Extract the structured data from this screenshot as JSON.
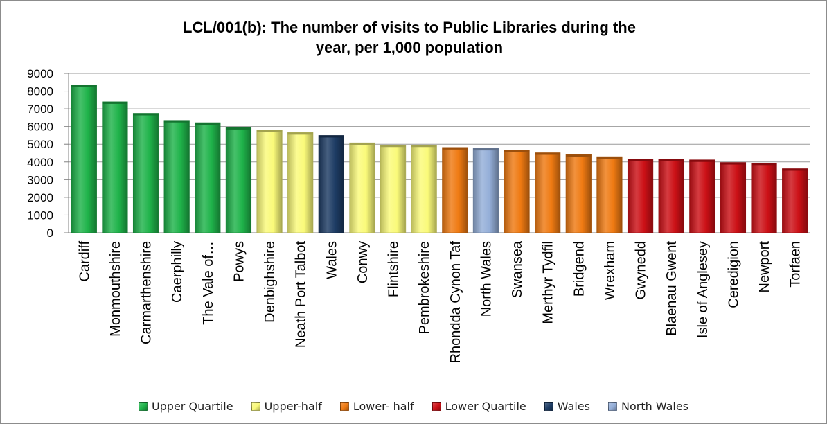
{
  "chart_data": {
    "type": "bar",
    "title_lines": [
      "LCL/001(b): The number of visits to Public Libraries during the",
      "year, per 1,000 population"
    ],
    "categories": [
      "Cardiff",
      "Monmouthshire",
      "Carmarthenshire",
      "Caerphilly",
      "The Vale of…",
      "Powys",
      "Denbighshire",
      "Neath Port Talbot",
      "Wales",
      "Conwy",
      "Flintshire",
      "Pembrokeshire",
      "Rhondda Cynon Taf",
      "North Wales",
      "Swansea",
      "Merthyr Tydfil",
      "Bridgend",
      "Wrexham",
      "Gwynedd",
      "Blaenau Gwent",
      "Isle of Anglesey",
      "Ceredigion",
      "Newport",
      "Torfaen"
    ],
    "values": [
      8350,
      7400,
      6750,
      6350,
      6220,
      5950,
      5800,
      5660,
      5500,
      5080,
      4960,
      4960,
      4820,
      4770,
      4680,
      4520,
      4410,
      4300,
      4170,
      4170,
      4120,
      3970,
      3940,
      3620
    ],
    "groups": [
      "Upper Quartile",
      "Upper Quartile",
      "Upper Quartile",
      "Upper Quartile",
      "Upper Quartile",
      "Upper Quartile",
      "Upper-half",
      "Upper-half",
      "Wales",
      "Upper-half",
      "Upper-half",
      "Upper-half",
      "Lower- half",
      "North Wales",
      "Lower- half",
      "Lower- half",
      "Lower- half",
      "Lower- half",
      "Lower Quartile",
      "Lower Quartile",
      "Lower Quartile",
      "Lower Quartile",
      "Lower Quartile",
      "Lower Quartile"
    ],
    "ylim": [
      0,
      9000
    ],
    "yticks": [
      0,
      1000,
      2000,
      3000,
      4000,
      5000,
      6000,
      7000,
      8000,
      9000
    ],
    "grid": true,
    "legend_position": "bottom",
    "legend": [
      {
        "name": "Upper Quartile",
        "color": "#1fb34a"
      },
      {
        "name": "Upper-half",
        "color": "#fafa7a"
      },
      {
        "name": "Lower- half",
        "color": "#ef7a12"
      },
      {
        "name": "Lower Quartile",
        "color": "#cc1016"
      },
      {
        "name": "Wales",
        "color": "#1d3c64"
      },
      {
        "name": "North Wales",
        "color": "#94aed8"
      }
    ]
  }
}
